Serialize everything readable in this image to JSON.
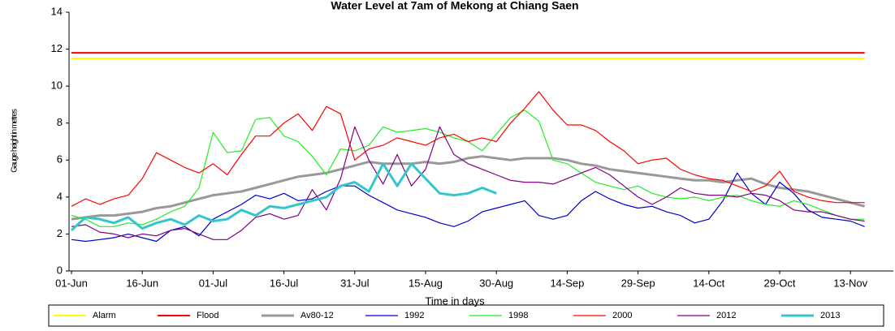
{
  "chart_data": {
    "type": "line",
    "title": "Water Level at 7am of Mekong at Chiang Saen",
    "x_label": "Time in days",
    "y_label": "Gauge height in metres",
    "categories": [
      "01-Jun",
      null,
      null,
      null,
      null,
      "16-Jun",
      null,
      null,
      null,
      null,
      "01-Jul",
      null,
      null,
      null,
      null,
      "16-Jul",
      null,
      null,
      null,
      null,
      "31-Jul",
      null,
      null,
      null,
      null,
      "15-Aug",
      null,
      null,
      null,
      null,
      "30-Aug",
      null,
      null,
      null,
      null,
      "14-Sep",
      null,
      null,
      null,
      null,
      "29-Sep",
      null,
      null,
      null,
      null,
      "14-Oct",
      null,
      null,
      null,
      null,
      "29-Oct",
      null,
      null,
      null,
      null,
      "13-Nov",
      null
    ],
    "ylim": [
      0,
      14
    ],
    "yticks": [
      0,
      2,
      4,
      6,
      8,
      10,
      12,
      14
    ],
    "legend": "bottom",
    "series": [
      {
        "name": "Alarm",
        "color": "#ffff00",
        "values": [
          11.5,
          11.5,
          11.5,
          11.5,
          11.5,
          11.5,
          11.5,
          11.5,
          11.5,
          11.5,
          11.5,
          11.5,
          11.5,
          11.5,
          11.5,
          11.5,
          11.5,
          11.5,
          11.5,
          11.5,
          11.5,
          11.5,
          11.5,
          11.5,
          11.5,
          11.5,
          11.5,
          11.5,
          11.5,
          11.5,
          11.5,
          11.5,
          11.5,
          11.5,
          11.5,
          11.5,
          11.5,
          11.5,
          11.5,
          11.5,
          11.5,
          11.5,
          11.5,
          11.5,
          11.5,
          11.5,
          11.5,
          11.5,
          11.5,
          11.5,
          11.5,
          11.5,
          11.5,
          11.5,
          11.5,
          11.5,
          11.5
        ]
      },
      {
        "name": "Flood",
        "color": "#ff0000",
        "values": [
          11.8,
          11.8,
          11.8,
          11.8,
          11.8,
          11.8,
          11.8,
          11.8,
          11.8,
          11.8,
          11.8,
          11.8,
          11.8,
          11.8,
          11.8,
          11.8,
          11.8,
          11.8,
          11.8,
          11.8,
          11.8,
          11.8,
          11.8,
          11.8,
          11.8,
          11.8,
          11.8,
          11.8,
          11.8,
          11.8,
          11.8,
          11.8,
          11.8,
          11.8,
          11.8,
          11.8,
          11.8,
          11.8,
          11.8,
          11.8,
          11.8,
          11.8,
          11.8,
          11.8,
          11.8,
          11.8,
          11.8,
          11.8,
          11.8,
          11.8,
          11.8,
          11.8,
          11.8,
          11.8,
          11.8,
          11.8,
          11.8
        ]
      },
      {
        "name": "Av80-12",
        "color": "#999999",
        "values": [
          2.8,
          2.9,
          3.0,
          3.0,
          3.1,
          3.2,
          3.4,
          3.5,
          3.7,
          3.9,
          4.1,
          4.2,
          4.3,
          4.5,
          4.7,
          4.9,
          5.1,
          5.2,
          5.3,
          5.5,
          5.7,
          5.9,
          5.8,
          5.8,
          5.8,
          5.9,
          5.8,
          5.9,
          6.1,
          6.2,
          6.1,
          6.0,
          6.1,
          6.1,
          6.1,
          6.0,
          5.8,
          5.7,
          5.5,
          5.4,
          5.3,
          5.2,
          5.1,
          5.0,
          4.9,
          4.9,
          4.8,
          4.9,
          5.0,
          4.7,
          4.5,
          4.4,
          4.3,
          4.1,
          3.9,
          3.7,
          3.5
        ]
      },
      {
        "name": "1992",
        "color": "#0000cc",
        "values": [
          1.7,
          1.6,
          1.7,
          1.8,
          2.0,
          1.8,
          1.6,
          2.2,
          2.4,
          1.9,
          2.8,
          3.2,
          3.6,
          4.1,
          3.9,
          4.2,
          3.8,
          3.9,
          4.3,
          4.6,
          4.6,
          4.1,
          3.7,
          3.3,
          3.1,
          2.9,
          2.6,
          2.4,
          2.7,
          3.2,
          3.4,
          3.6,
          3.8,
          3.0,
          2.8,
          3.0,
          3.8,
          4.3,
          3.9,
          3.6,
          3.4,
          3.5,
          3.2,
          3.0,
          2.6,
          2.8,
          3.8,
          5.3,
          4.2,
          3.6,
          4.8,
          4.2,
          3.3,
          2.9,
          2.8,
          2.7,
          2.4
        ]
      },
      {
        "name": "1998",
        "color": "#22ee22",
        "values": [
          3.0,
          2.8,
          2.4,
          2.4,
          2.6,
          2.5,
          2.8,
          3.2,
          3.5,
          4.5,
          7.5,
          6.4,
          6.5,
          8.2,
          8.3,
          7.3,
          7.0,
          6.2,
          5.2,
          6.6,
          6.5,
          6.8,
          7.8,
          7.5,
          7.6,
          7.7,
          7.5,
          7.2,
          7.0,
          6.5,
          7.4,
          8.3,
          8.7,
          8.1,
          6.0,
          5.8,
          5.3,
          4.8,
          4.6,
          4.4,
          4.6,
          4.2,
          4.0,
          3.9,
          4.0,
          3.8,
          4.0,
          4.1,
          3.8,
          3.6,
          3.5,
          3.8,
          3.6,
          3.3,
          3.0,
          2.8,
          2.8
        ]
      },
      {
        "name": "2000",
        "color": "#ff0000",
        "values": [
          3.5,
          3.9,
          3.6,
          3.9,
          4.1,
          5.0,
          6.4,
          6.0,
          5.6,
          5.3,
          5.8,
          5.2,
          6.3,
          7.3,
          7.3,
          8.0,
          8.5,
          7.6,
          8.9,
          8.5,
          6.0,
          6.6,
          6.8,
          7.2,
          7.0,
          6.8,
          7.2,
          7.4,
          7.0,
          7.2,
          7.0,
          8.0,
          8.8,
          9.7,
          8.7,
          7.9,
          7.9,
          7.6,
          7.0,
          6.5,
          5.8,
          6.0,
          6.1,
          5.5,
          5.2,
          5.0,
          4.9,
          4.6,
          4.3,
          4.6,
          5.4,
          4.3,
          4.0,
          3.8,
          3.7,
          3.7,
          3.7
        ]
      },
      {
        "name": "2012",
        "color": "#800080",
        "values": [
          2.4,
          2.5,
          2.1,
          2.0,
          1.8,
          2.0,
          1.9,
          2.2,
          2.3,
          2.0,
          1.7,
          1.7,
          2.2,
          2.9,
          3.1,
          2.8,
          3.0,
          4.4,
          3.3,
          5.0,
          7.8,
          6.0,
          4.7,
          6.3,
          4.6,
          5.5,
          7.8,
          6.3,
          5.8,
          5.5,
          5.2,
          4.9,
          4.8,
          4.8,
          4.7,
          5.0,
          5.3,
          5.6,
          5.2,
          4.6,
          4.0,
          3.6,
          4.0,
          4.5,
          4.2,
          4.1,
          4.1,
          4.0,
          4.2,
          4.1,
          3.8,
          3.3,
          3.2,
          3.2,
          3.0,
          2.8,
          2.7
        ]
      },
      {
        "name": "2013",
        "color": "#33c6cc",
        "values": [
          2.2,
          2.9,
          2.8,
          2.6,
          2.9,
          2.3,
          2.6,
          2.8,
          2.5,
          3.0,
          2.7,
          2.8,
          3.3,
          3.0,
          3.5,
          3.4,
          3.6,
          3.8,
          4.0,
          4.6,
          4.8,
          4.3,
          5.8,
          4.6,
          5.8,
          5.0,
          4.2,
          4.1,
          4.2,
          4.5,
          4.2,
          null,
          null,
          null,
          null,
          null,
          null,
          null,
          null,
          null,
          null,
          null,
          null,
          null,
          null,
          null,
          null,
          null,
          null,
          null,
          null,
          null,
          null,
          null,
          null,
          null,
          null
        ]
      }
    ]
  }
}
